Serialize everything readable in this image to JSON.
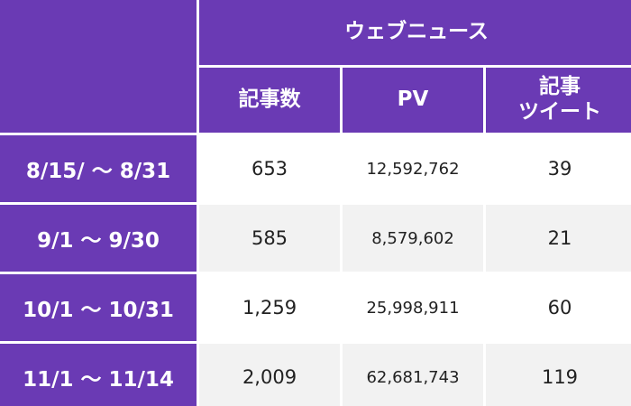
{
  "table": {
    "group_header": "ウェブニュース",
    "columns": [
      {
        "label": "記事数"
      },
      {
        "label": "PV"
      },
      {
        "label_line1": "記事",
        "label_line2": "ツイート"
      }
    ],
    "rows": [
      {
        "period": "8/15/ 〜 8/31",
        "articles": "653",
        "pv": "12,592,762",
        "tweets": "39"
      },
      {
        "period": "9/1 〜 9/30",
        "articles": "585",
        "pv": "8,579,602",
        "tweets": "21"
      },
      {
        "period": "10/1 〜 10/31",
        "articles": "1,259",
        "pv": "25,998,911",
        "tweets": "60"
      },
      {
        "period": "11/1 〜 11/14",
        "articles": "2,009",
        "pv": "62,681,743",
        "tweets": "119"
      }
    ]
  },
  "colors": {
    "header_bg": "#6a3ab4",
    "header_text": "#ffffff",
    "row_alt_bg": "#f2f2f2"
  }
}
